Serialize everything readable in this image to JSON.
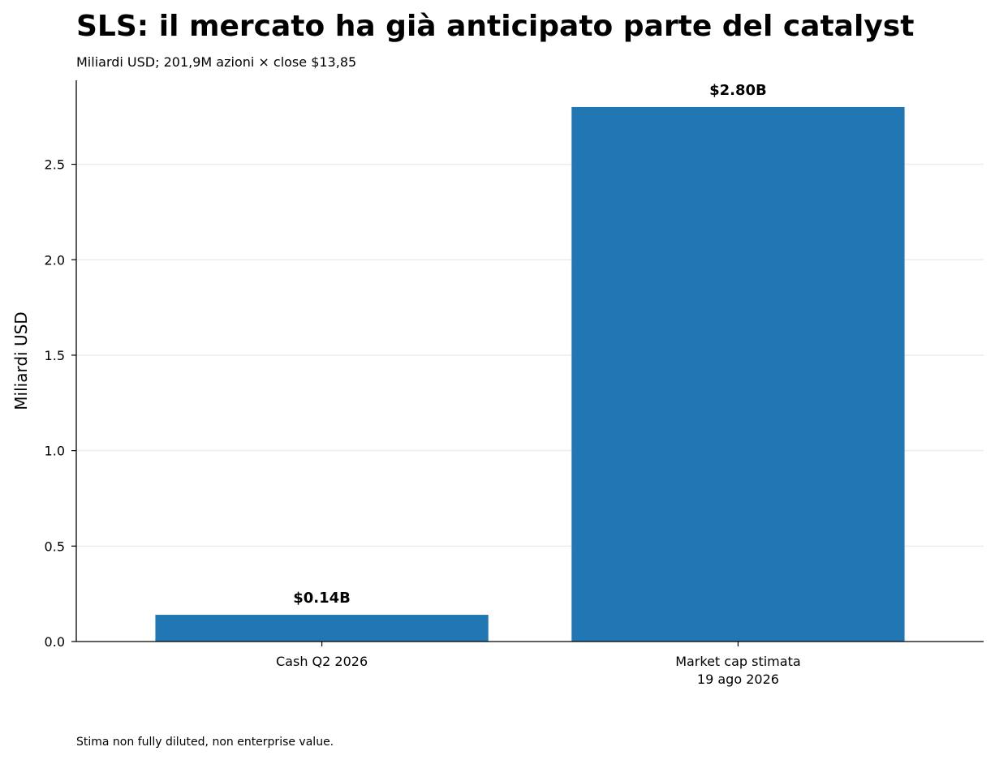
{
  "header": {
    "title": "SLS: il mercato ha già anticipato parte del catalyst",
    "subtitle": "Miliardi USD; 201,9M azioni × close $13,85"
  },
  "footer": {
    "note": "Stima non fully diluted, non enterprise value."
  },
  "colors": {
    "bar": "#2077b4",
    "grid": "#ececec",
    "axis": "#000000"
  },
  "chart_data": {
    "type": "bar",
    "categories": [
      "Cash Q2 2026",
      "Market cap stimata\n19 ago 2026"
    ],
    "values": [
      0.14,
      2.8
    ],
    "data_labels": [
      "$0.14B",
      "$2.80B"
    ],
    "title": "SLS: il mercato ha già anticipato parte del catalyst",
    "subtitle": "Miliardi USD; 201,9M azioni × close $13,85",
    "xlabel": "",
    "ylabel": "Miliardi USD",
    "ylim": [
      0,
      2.94
    ],
    "yticks": [
      0.0,
      0.5,
      1.0,
      1.5,
      2.0,
      2.5
    ],
    "ytick_labels": [
      "0.0",
      "0.5",
      "1.0",
      "1.5",
      "2.0",
      "2.5"
    ],
    "grid": "y",
    "legend": "none"
  }
}
